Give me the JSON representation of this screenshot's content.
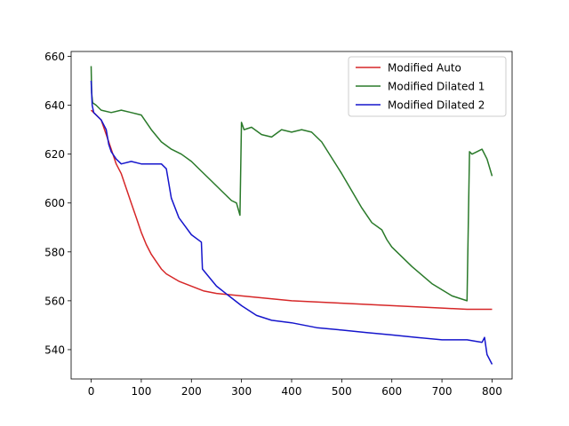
{
  "chart_data": {
    "type": "line",
    "title": "",
    "xlabel": "",
    "ylabel": "",
    "xlim": [
      -40,
      840
    ],
    "ylim": [
      528,
      662
    ],
    "xticks": [
      0,
      100,
      200,
      300,
      400,
      500,
      600,
      700,
      800
    ],
    "yticks": [
      540,
      560,
      580,
      600,
      620,
      640,
      660
    ],
    "grid": false,
    "legend_position": "top-right",
    "series": [
      {
        "name": "Modified Auto",
        "color": "#d62728",
        "x": [
          0,
          10,
          20,
          30,
          40,
          50,
          60,
          70,
          80,
          90,
          100,
          110,
          120,
          130,
          140,
          150,
          175,
          200,
          225,
          250,
          300,
          350,
          400,
          450,
          500,
          550,
          600,
          650,
          700,
          750,
          800
        ],
        "y": [
          638,
          636,
          634,
          628,
          622,
          616,
          612,
          606,
          600,
          594,
          588,
          583,
          579,
          576,
          573,
          571,
          568,
          566,
          564,
          563,
          562,
          561,
          560,
          559.5,
          559,
          558.5,
          558,
          557.5,
          557,
          556.5,
          556.5
        ]
      },
      {
        "name": "Modified Dilated 1",
        "color": "#2a7a2a",
        "x": [
          0,
          1,
          3,
          10,
          20,
          40,
          60,
          80,
          100,
          120,
          140,
          160,
          180,
          200,
          220,
          240,
          260,
          280,
          290,
          297,
          300,
          305,
          320,
          340,
          360,
          380,
          400,
          420,
          440,
          460,
          500,
          540,
          560,
          580,
          590,
          600,
          640,
          680,
          720,
          750,
          755,
          760,
          770,
          780,
          790,
          800
        ],
        "y": [
          656,
          645,
          641,
          640,
          638,
          637,
          638,
          637,
          636,
          630,
          625,
          622,
          620,
          617,
          613,
          609,
          605,
          601,
          600,
          595,
          633,
          630,
          631,
          628,
          627,
          630,
          629,
          630,
          629,
          625,
          612,
          598,
          592,
          589,
          585,
          582,
          574,
          567,
          562,
          560,
          621,
          620,
          621,
          622,
          618,
          611
        ]
      },
      {
        "name": "Modified Dilated 2",
        "color": "#1515cc",
        "x": [
          0,
          2,
          5,
          10,
          20,
          30,
          35,
          40,
          50,
          60,
          80,
          100,
          120,
          140,
          150,
          160,
          175,
          200,
          220,
          222,
          230,
          250,
          275,
          300,
          330,
          360,
          400,
          450,
          500,
          550,
          600,
          650,
          700,
          750,
          780,
          785,
          790,
          800
        ],
        "y": [
          650,
          640,
          637,
          636,
          634,
          630,
          624,
          621,
          618,
          616,
          617,
          616,
          616,
          616,
          614,
          602,
          594,
          587,
          584,
          573,
          571,
          566,
          562,
          558,
          554,
          552,
          551,
          549,
          548,
          547,
          546,
          545,
          544,
          544,
          543,
          545,
          538,
          534
        ]
      }
    ]
  }
}
